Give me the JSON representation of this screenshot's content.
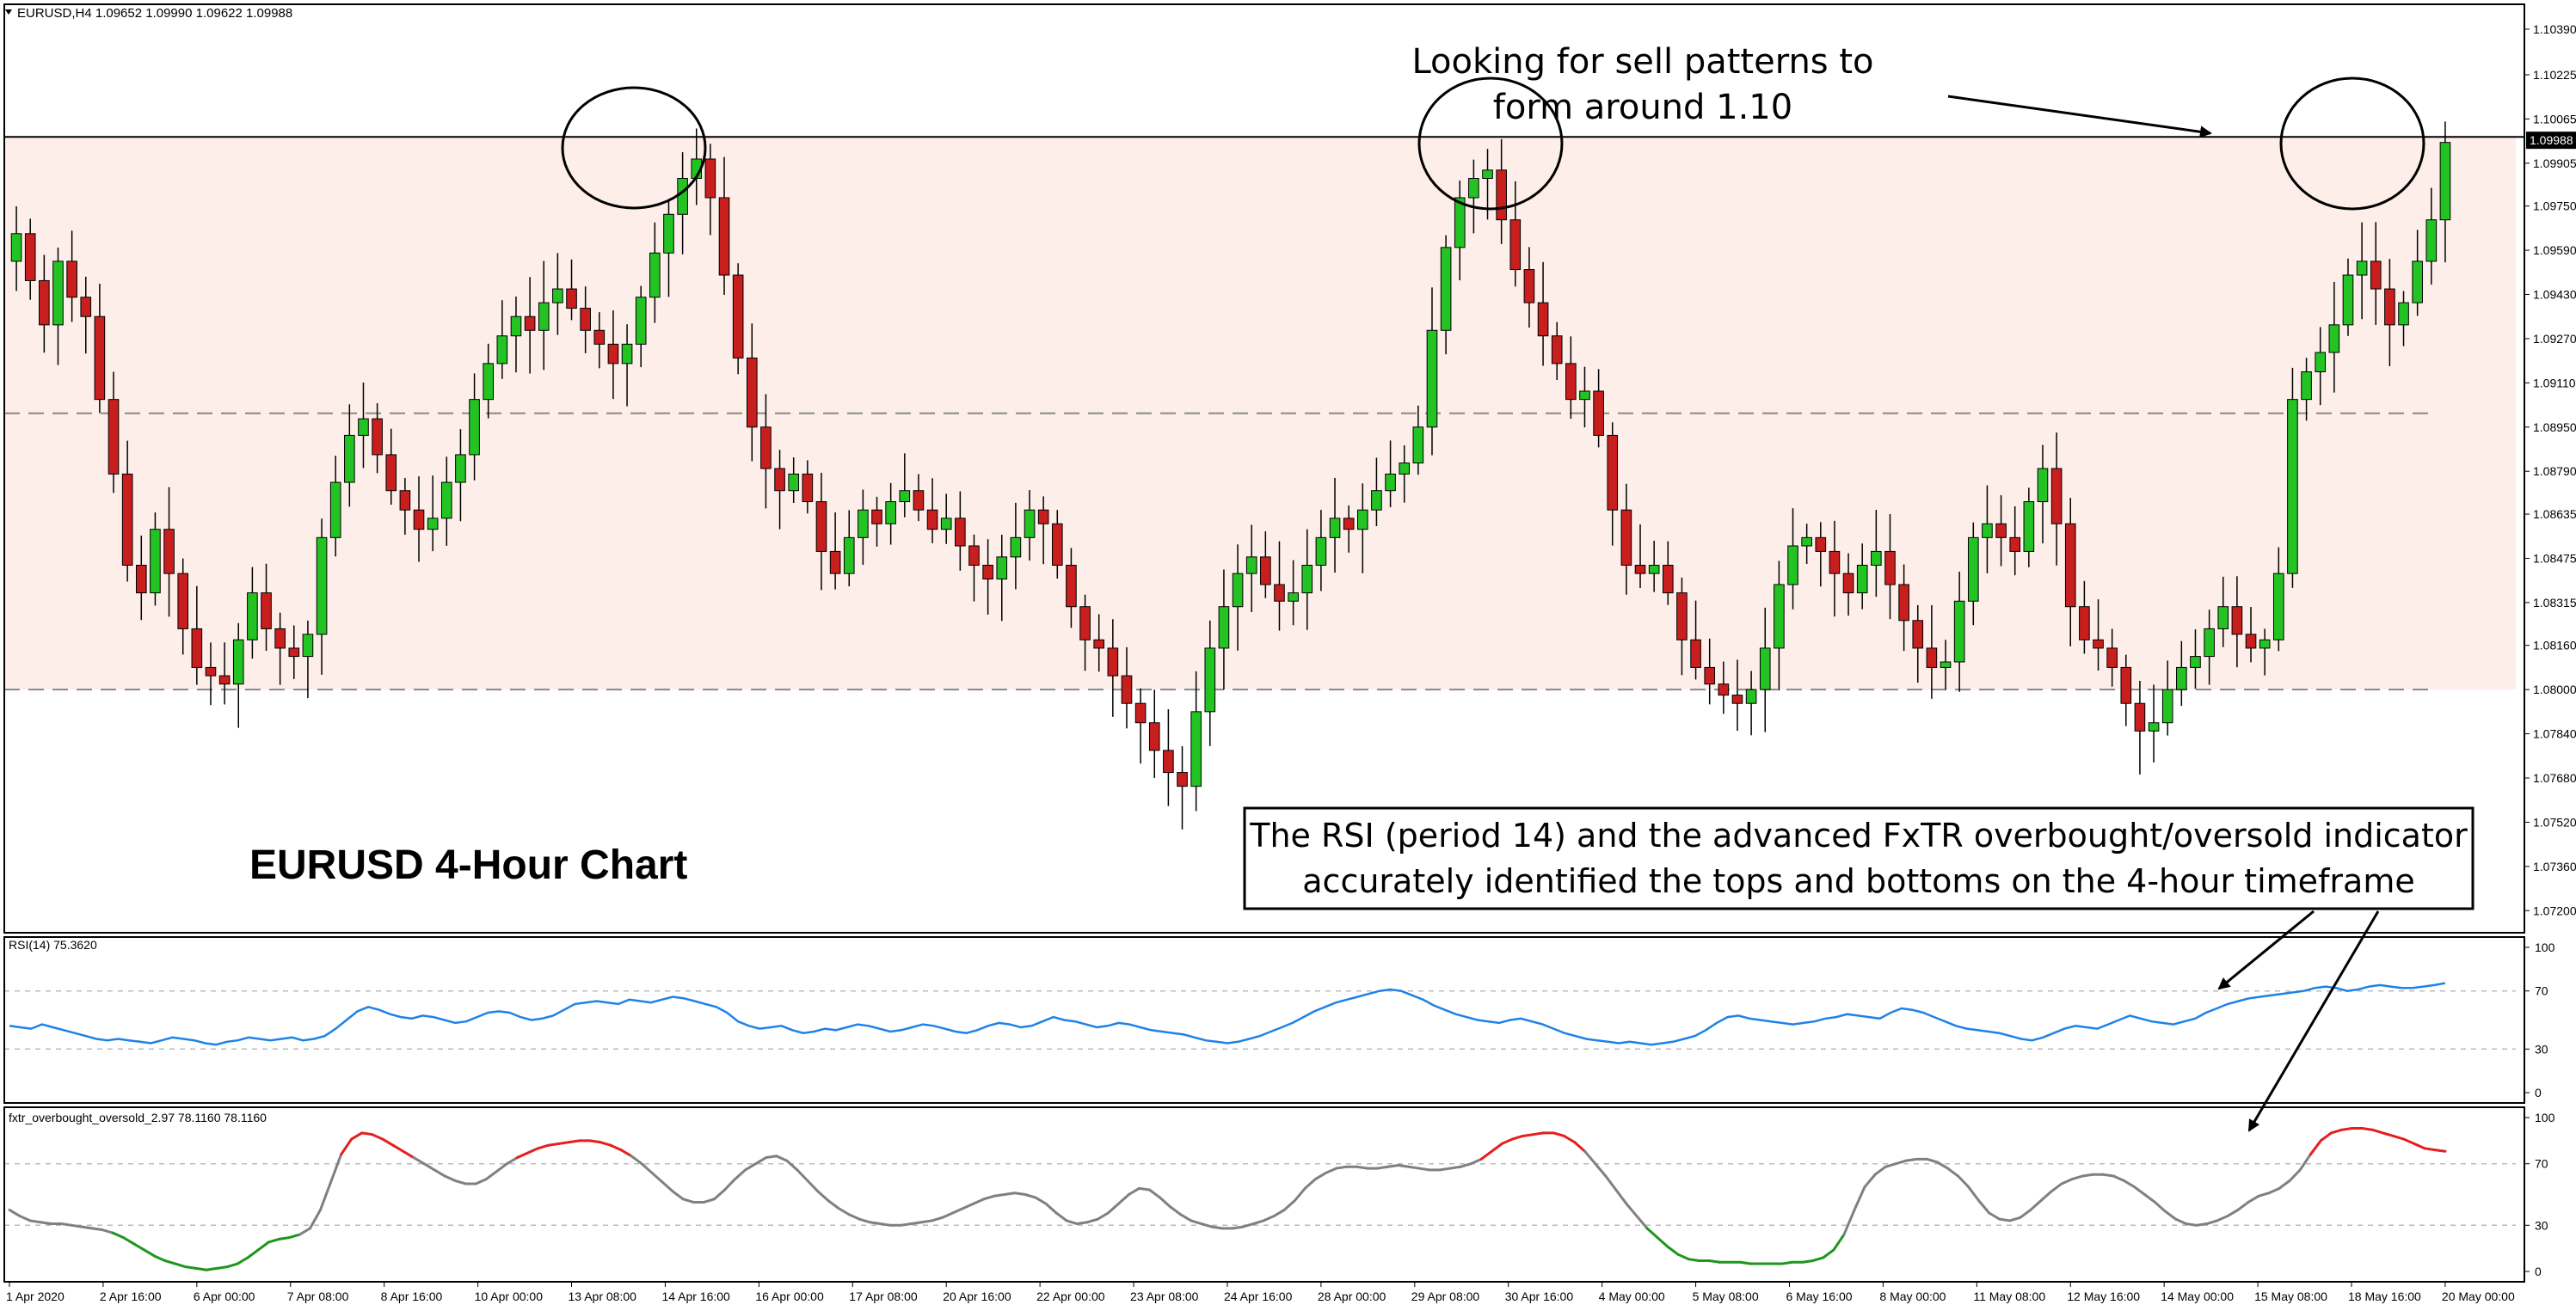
{
  "header": {
    "symbol_info": "EURUSD,H4  1.09652 1.09990 1.09622 1.09988"
  },
  "annotations": {
    "chart_title": "EURUSD 4-Hour Chart",
    "sell_note_line1": "Looking for sell patterns to",
    "sell_note_line2": "form around 1.10",
    "rsi_note_line1": "The RSI (period 14) and the advanced FxTR overbought/oversold indicator",
    "rsi_note_line2": "accurately identified the tops and bottoms on the 4-hour timeframe"
  },
  "colors": {
    "bull": "#22c322",
    "bear": "#c81e1e",
    "band_fill": "#fdeee9",
    "rsi_line": "#1e82e6",
    "osc_neutral": "#808080",
    "osc_overbought": "#e61e1e",
    "osc_oversold": "#1e961e"
  },
  "chart_data": [
    {
      "type": "candlestick",
      "timeframe": "H4",
      "title": "EURUSD 4-Hour Chart",
      "ylim": [
        1.0712,
        1.1048
      ],
      "y_ticks": [
        "1.10390",
        "1.10225",
        "1.10065",
        "1.09905",
        "1.09750",
        "1.09590",
        "1.09430",
        "1.09270",
        "1.09110",
        "1.08950",
        "1.08790",
        "1.08635",
        "1.08475",
        "1.08315",
        "1.08160",
        "1.08000",
        "1.07840",
        "1.07680",
        "1.07520",
        "1.07360",
        "1.07200"
      ],
      "x_labels": [
        "1 Apr 2020",
        "2 Apr 16:00",
        "6 Apr 00:00",
        "7 Apr 08:00",
        "8 Apr 16:00",
        "10 Apr 00:00",
        "13 Apr 08:00",
        "14 Apr 16:00",
        "16 Apr 00:00",
        "17 Apr 08:00",
        "20 Apr 16:00",
        "22 Apr 00:00",
        "23 Apr 08:00",
        "24 Apr 16:00",
        "28 Apr 00:00",
        "29 Apr 08:00",
        "30 Apr 16:00",
        "4 May 00:00",
        "5 May 08:00",
        "6 May 16:00",
        "8 May 00:00",
        "11 May 08:00",
        "12 May 16:00",
        "14 May 00:00",
        "15 May 08:00",
        "18 May 16:00",
        "20 May 00:00"
      ],
      "current_price": "1.09988",
      "horizontal_levels": [
        1.1,
        1.09,
        1.08
      ],
      "shaded_band": [
        1.08,
        1.1
      ],
      "closes": [
        1.0965,
        1.0948,
        1.0932,
        1.0955,
        1.0942,
        1.0935,
        1.0905,
        1.0878,
        1.0845,
        1.0835,
        1.0858,
        1.0842,
        1.0822,
        1.0808,
        1.0805,
        1.0802,
        1.0818,
        1.0835,
        1.0822,
        1.0815,
        1.0812,
        1.082,
        1.0855,
        1.0875,
        1.0892,
        1.0898,
        1.0885,
        1.0872,
        1.0865,
        1.0858,
        1.0862,
        1.0875,
        1.0885,
        1.0905,
        1.0918,
        1.0928,
        1.0935,
        1.093,
        1.094,
        1.0945,
        1.0938,
        1.093,
        1.0925,
        1.0918,
        1.0925,
        1.0942,
        1.0958,
        1.0972,
        1.0985,
        1.0992,
        1.0978,
        1.095,
        1.092,
        1.0895,
        1.088,
        1.0872,
        1.0878,
        1.0868,
        1.085,
        1.0842,
        1.0855,
        1.0865,
        1.086,
        1.0868,
        1.0872,
        1.0865,
        1.0858,
        1.0862,
        1.0852,
        1.0845,
        1.084,
        1.0848,
        1.0855,
        1.0865,
        1.086,
        1.0845,
        1.083,
        1.0818,
        1.0815,
        1.0805,
        1.0795,
        1.0788,
        1.0778,
        1.077,
        1.0765,
        1.0792,
        1.0815,
        1.083,
        1.0842,
        1.0848,
        1.0838,
        1.0832,
        1.0835,
        1.0845,
        1.0855,
        1.0862,
        1.0858,
        1.0865,
        1.0872,
        1.0878,
        1.0882,
        1.0895,
        1.093,
        1.096,
        1.0978,
        1.0985,
        1.0988,
        1.097,
        1.0952,
        1.094,
        1.0928,
        1.0918,
        1.0905,
        1.0908,
        1.0892,
        1.0865,
        1.0845,
        1.0842,
        1.0845,
        1.0835,
        1.0818,
        1.0808,
        1.0802,
        1.0798,
        1.0795,
        1.08,
        1.0815,
        1.0838,
        1.0852,
        1.0855,
        1.085,
        1.0842,
        1.0835,
        1.0845,
        1.085,
        1.0838,
        1.0825,
        1.0815,
        1.0808,
        1.081,
        1.0832,
        1.0855,
        1.086,
        1.0855,
        1.085,
        1.0868,
        1.088,
        1.086,
        1.083,
        1.0818,
        1.0815,
        1.0808,
        1.0795,
        1.0785,
        1.0788,
        1.08,
        1.0808,
        1.0812,
        1.0822,
        1.083,
        1.082,
        1.0815,
        1.0818,
        1.0842,
        1.0905,
        1.0915,
        1.0922,
        1.0932,
        1.095,
        1.0955,
        1.0945,
        1.0932,
        1.094,
        1.0955,
        1.097,
        1.0998
      ]
    },
    {
      "type": "line",
      "name": "RSI(14) 75.3620",
      "ylim": [
        0,
        100
      ],
      "y_ticks": [
        100,
        70,
        30,
        0
      ],
      "levels": [
        70,
        30
      ],
      "values": [
        46,
        45,
        44,
        47,
        45,
        43,
        41,
        39,
        37,
        36,
        37,
        36,
        35,
        34,
        36,
        38,
        37,
        36,
        34,
        33,
        35,
        36,
        38,
        37,
        36,
        37,
        38,
        36,
        37,
        39,
        44,
        50,
        56,
        59,
        57,
        54,
        52,
        51,
        53,
        52,
        50,
        48,
        49,
        52,
        55,
        56,
        55,
        52,
        50,
        51,
        53,
        57,
        61,
        62,
        63,
        62,
        61,
        64,
        63,
        62,
        64,
        66,
        65,
        63,
        61,
        59,
        55,
        49,
        46,
        44,
        45,
        46,
        43,
        41,
        42,
        44,
        43,
        45,
        47,
        46,
        44,
        42,
        43,
        45,
        47,
        46,
        44,
        42,
        41,
        43,
        46,
        48,
        47,
        45,
        46,
        49,
        52,
        50,
        49,
        47,
        45,
        46,
        48,
        47,
        45,
        43,
        42,
        41,
        40,
        38,
        36,
        35,
        34,
        35,
        37,
        39,
        42,
        45,
        48,
        52,
        56,
        59,
        62,
        64,
        66,
        68,
        70,
        71,
        70,
        67,
        64,
        60,
        57,
        54,
        52,
        50,
        49,
        48,
        50,
        51,
        49,
        47,
        44,
        41,
        39,
        37,
        36,
        35,
        34,
        35,
        34,
        33,
        34,
        35,
        37,
        39,
        43,
        48,
        52,
        53,
        51,
        50,
        49,
        48,
        47,
        48,
        49,
        51,
        52,
        54,
        53,
        52,
        51,
        55,
        58,
        57,
        55,
        52,
        49,
        46,
        44,
        43,
        42,
        41,
        39,
        37,
        36,
        38,
        41,
        44,
        46,
        45,
        44,
        47,
        50,
        53,
        51,
        49,
        48,
        47,
        49,
        51,
        55,
        58,
        61,
        63,
        65,
        66,
        67,
        68,
        69,
        70,
        72,
        73,
        72,
        70,
        71,
        73,
        74,
        73,
        72,
        72,
        73,
        74,
        75.4
      ]
    },
    {
      "type": "line",
      "name": "fxtr_overbought_oversold_2.97 78.1160 78.1160",
      "ylim": [
        0,
        100
      ],
      "y_ticks": [
        100,
        70,
        30,
        0
      ],
      "levels": [
        70,
        30
      ],
      "values": [
        40,
        36,
        33,
        32,
        31,
        31,
        30,
        29,
        28,
        27,
        25,
        22,
        18,
        14,
        10,
        7,
        5,
        3,
        2,
        1,
        2,
        3,
        5,
        9,
        14,
        19,
        21,
        22,
        24,
        28,
        40,
        58,
        76,
        86,
        90,
        89,
        86,
        82,
        78,
        74,
        70,
        66,
        62,
        59,
        57,
        57,
        60,
        65,
        70,
        74,
        77,
        80,
        82,
        83,
        84,
        85,
        85,
        84,
        82,
        79,
        75,
        70,
        64,
        58,
        52,
        47,
        45,
        45,
        47,
        53,
        60,
        66,
        70,
        74,
        75,
        72,
        66,
        59,
        52,
        46,
        41,
        37,
        34,
        32,
        31,
        30,
        30,
        31,
        32,
        33,
        35,
        38,
        41,
        44,
        47,
        49,
        50,
        51,
        50,
        48,
        44,
        38,
        33,
        31,
        32,
        34,
        38,
        44,
        50,
        54,
        53,
        48,
        42,
        37,
        33,
        31,
        29,
        28,
        28,
        29,
        31,
        33,
        36,
        40,
        46,
        54,
        60,
        64,
        67,
        68,
        68,
        67,
        67,
        68,
        69,
        68,
        67,
        66,
        66,
        67,
        68,
        70,
        73,
        78,
        83,
        86,
        88,
        89,
        90,
        90,
        88,
        84,
        78,
        70,
        62,
        53,
        44,
        36,
        28,
        22,
        16,
        11,
        8,
        7,
        7,
        6,
        6,
        6,
        5,
        5,
        5,
        5,
        6,
        6,
        7,
        9,
        14,
        24,
        40,
        55,
        63,
        68,
        70,
        72,
        73,
        73,
        71,
        67,
        62,
        55,
        46,
        38,
        34,
        33,
        35,
        40,
        46,
        52,
        57,
        60,
        62,
        63,
        63,
        62,
        59,
        55,
        50,
        45,
        39,
        34,
        31,
        30,
        31,
        33,
        36,
        40,
        45,
        49,
        51,
        54,
        59,
        66,
        76,
        85,
        90,
        92,
        93,
        93,
        92,
        90,
        88,
        86,
        83,
        80,
        79,
        78.1
      ]
    }
  ]
}
